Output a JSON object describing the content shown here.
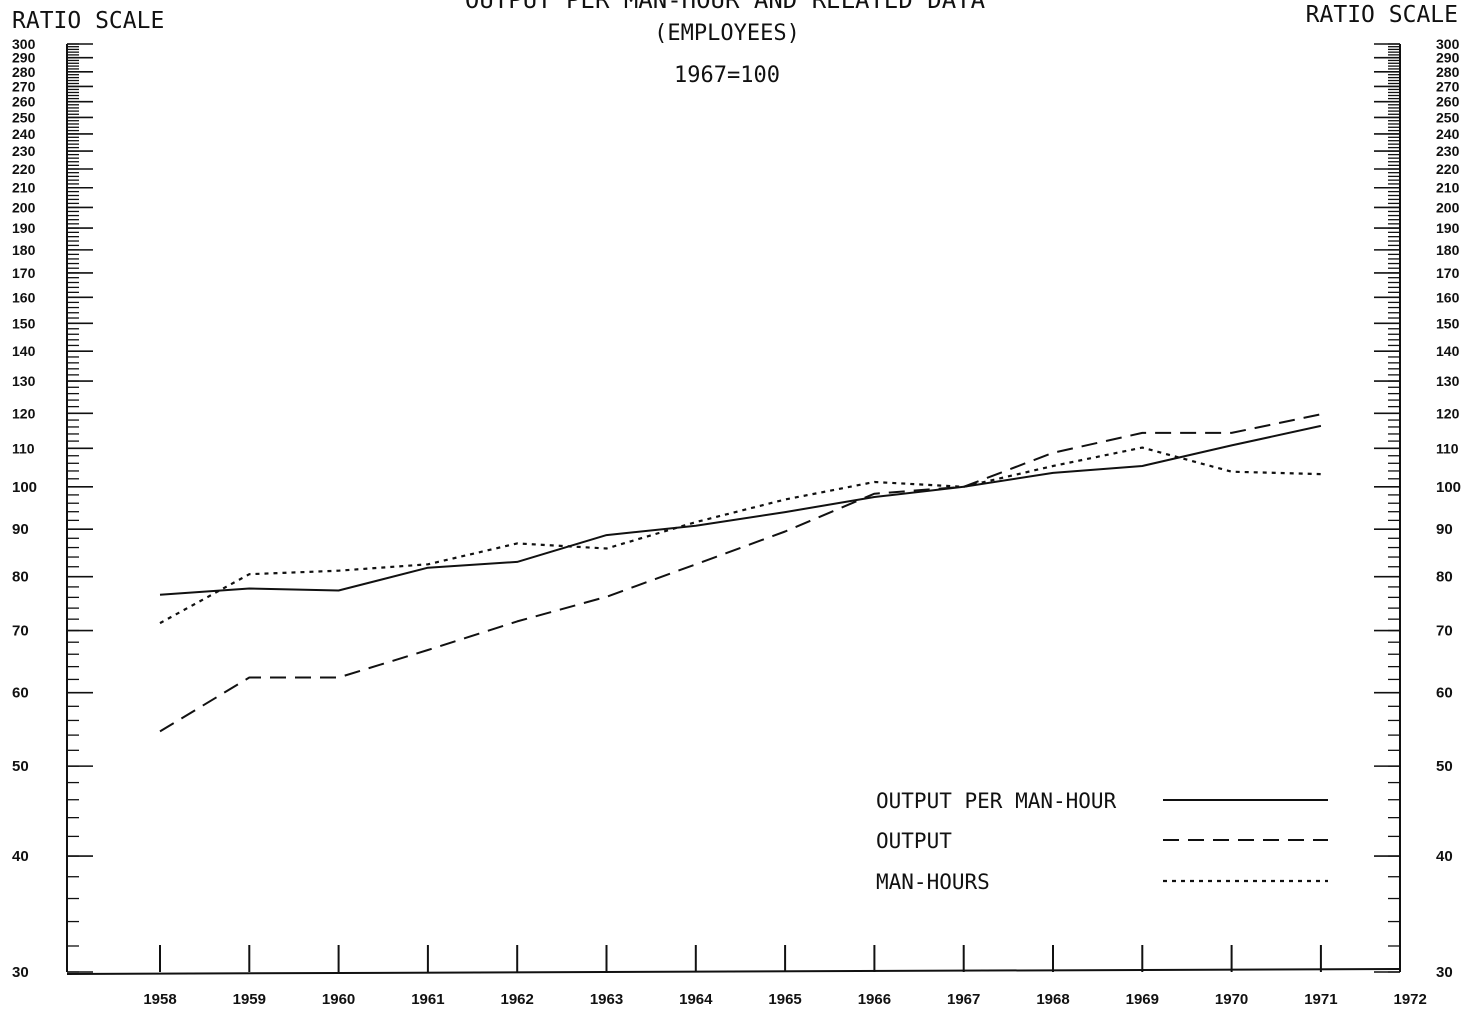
{
  "chart_data": {
    "type": "line",
    "title": "OUTPUT PER MAN-HOUR AND RELATED DATA",
    "subtitle": "(EMPLOYEES)",
    "index_note": "1967=100",
    "scale_label_left": "RATIO SCALE",
    "scale_label_right": "RATIO SCALE",
    "scale": "log",
    "ylim": [
      30,
      300
    ],
    "y_tick_labels": [
      "30",
      "40",
      "50",
      "60",
      "70",
      "80",
      "90",
      "100",
      "110",
      "120",
      "130",
      "140",
      "150",
      "160",
      "170",
      "180",
      "190",
      "200",
      "210",
      "220",
      "230",
      "240",
      "250",
      "260",
      "270",
      "280",
      "290",
      "300"
    ],
    "x_tick_labels": [
      "1958",
      "1959",
      "1960",
      "1961",
      "1962",
      "1963",
      "1964",
      "1965",
      "1966",
      "1967",
      "1968",
      "1969",
      "1970",
      "1971",
      "1972"
    ],
    "x": [
      1958,
      1959,
      1960,
      1961,
      1962,
      1963,
      1964,
      1965,
      1966,
      1967,
      1968,
      1969,
      1970,
      1971
    ],
    "series": [
      {
        "name": "OUTPUT PER MAN-HOUR",
        "style": "solid",
        "values": [
          76.5,
          77.7,
          77.3,
          81.8,
          83.0,
          88.7,
          90.8,
          93.9,
          97.5,
          100.0,
          103.5,
          105.3,
          110.8,
          116.3
        ]
      },
      {
        "name": "OUTPUT",
        "style": "dashed",
        "values": [
          54.5,
          62.3,
          62.3,
          66.7,
          71.6,
          76.1,
          82.5,
          89.5,
          98.3,
          100.0,
          108.8,
          114.3,
          114.3,
          119.7
        ]
      },
      {
        "name": "MAN-HOURS",
        "style": "dotted",
        "values": [
          71.3,
          80.5,
          81.2,
          82.5,
          86.9,
          85.8,
          91.6,
          96.9,
          101.2,
          100.0,
          105.3,
          110.2,
          103.8,
          103.2
        ]
      }
    ],
    "legend": "bottom-right",
    "grid": false
  }
}
